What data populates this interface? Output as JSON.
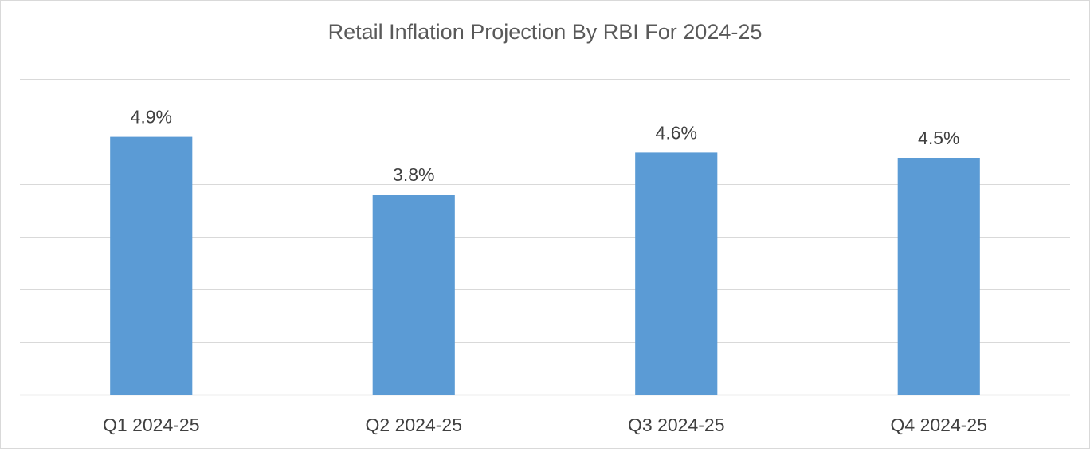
{
  "chart_data": {
    "type": "bar",
    "title": "Retail Inflation Projection By RBI For 2024-25",
    "categories": [
      "Q1 2024-25",
      "Q2 2024-25",
      "Q3 2024-25",
      "Q4 2024-25"
    ],
    "series": [
      {
        "values": [
          4.9,
          3.8,
          4.6,
          4.5
        ]
      }
    ],
    "data_labels": [
      "4.9%",
      "3.8%",
      "4.6%",
      "4.5%"
    ],
    "xlabel": "",
    "ylabel": "",
    "ylim": [
      0,
      6
    ],
    "ytick_step": 1,
    "y_tick_labels_visible": false,
    "grid": true,
    "legend": "none",
    "colors": {
      "bar": "#5b9bd5",
      "grid": "#d9d9d9",
      "text": "#404040",
      "title": "#595959",
      "border": "#d9d9d9"
    }
  }
}
